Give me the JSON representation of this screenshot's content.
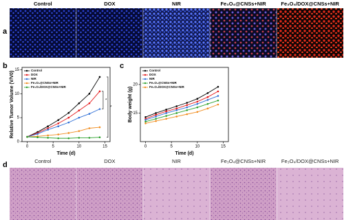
{
  "panel_labels": [
    "a",
    "b",
    "c",
    "d"
  ],
  "fluorescence_labels": [
    "Control",
    "DOX",
    "NIR",
    "Fe₃O₄@CNSs+NIR",
    "Fe₃O₄/DOX@CNSs+NIR"
  ],
  "histology_labels": [
    "Control",
    "DOX",
    "NIR",
    "Fe₃O₄@CNSs+NIR",
    "Fe₃O₄/DOX@CNSs+NIR"
  ],
  "chart_data": [
    {
      "type": "line",
      "xlabel": "Time (d)",
      "ylabel": "Relative Tumor Volume (V/V0)",
      "x": [
        0,
        2,
        4,
        6,
        8,
        10,
        12,
        14
      ],
      "xlim": [
        -1,
        16
      ],
      "xticks": [
        0,
        5,
        10,
        15
      ],
      "ylim": [
        0,
        15.5
      ],
      "yticks": [
        0,
        5,
        10,
        15
      ],
      "annotations": [
        "*",
        "*"
      ],
      "series": [
        {
          "name": "Control",
          "color": "#000000",
          "values": [
            1,
            2,
            3.2,
            4.5,
            6,
            8,
            10,
            13.5
          ]
        },
        {
          "name": "DOX",
          "color": "#e41a1c",
          "values": [
            1,
            1.8,
            2.8,
            3.8,
            5,
            6.5,
            8,
            10.5
          ]
        },
        {
          "name": "NIR",
          "color": "#2f6fd6",
          "values": [
            1,
            1.6,
            2.5,
            3.2,
            4,
            5,
            5.8,
            6.8
          ]
        },
        {
          "name": "Fe₃O₄@CNSs+NIR",
          "color": "#f08c1e",
          "values": [
            1,
            1.1,
            1.3,
            1.5,
            1.8,
            2.2,
            2.8,
            3
          ]
        },
        {
          "name": "Fe₃O₄/DOX@CNSs+NIR",
          "color": "#2ca02c",
          "values": [
            1,
            0.9,
            0.8,
            0.7,
            0.7,
            0.8,
            0.8,
            0.9
          ]
        }
      ]
    },
    {
      "type": "line",
      "xlabel": "Time (d)",
      "ylabel": "Body weight (g)",
      "x": [
        0,
        2,
        4,
        6,
        8,
        10,
        12,
        14
      ],
      "xlim": [
        -1,
        16
      ],
      "xticks": [
        0,
        5,
        10,
        15
      ],
      "ylim": [
        10,
        23
      ],
      "yticks": [
        15,
        20
      ],
      "series": [
        {
          "name": "Control",
          "color": "#000000",
          "values": [
            14.3,
            15,
            15.6,
            16.2,
            16.8,
            17.5,
            18.5,
            19.6
          ]
        },
        {
          "name": "DOX",
          "color": "#e41a1c",
          "values": [
            14,
            14.7,
            15.3,
            15.8,
            16.4,
            17,
            17.8,
            18.8
          ]
        },
        {
          "name": "NIR",
          "color": "#2f6fd6",
          "values": [
            13.8,
            14.4,
            15,
            15.5,
            16,
            16.6,
            17.3,
            18
          ]
        },
        {
          "name": "Fe₃O₄@CNSs+NIR",
          "color": "#2ca02c",
          "values": [
            13.5,
            14,
            14.5,
            15,
            15.5,
            16,
            16.6,
            17.2
          ]
        },
        {
          "name": "Fe₃O₄/DOX@CNSs+NIR",
          "color": "#f08c1e",
          "values": [
            13.2,
            13.6,
            14,
            14.4,
            14.8,
            15.2,
            15.8,
            16.5
          ]
        }
      ]
    }
  ]
}
